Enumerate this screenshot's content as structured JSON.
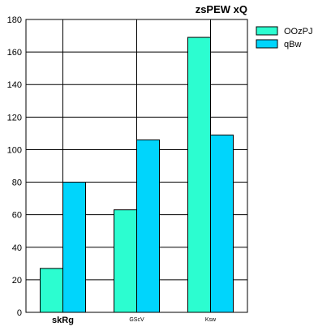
{
  "chart_data": {
    "type": "bar",
    "title": "zsPEW xQ",
    "categories": [
      "skRg",
      "GScV",
      "Ksw"
    ],
    "series": [
      {
        "name": "OOzPJ",
        "color": "#2cfdd0",
        "values": [
          27,
          63,
          169
        ]
      },
      {
        "name": "qBw",
        "color": "#00d5fc",
        "values": [
          80,
          106,
          109
        ]
      }
    ],
    "yticks": [
      0,
      20,
      40,
      60,
      80,
      100,
      120,
      140,
      160,
      180
    ],
    "ylim": [
      0,
      180
    ],
    "xlabel": "",
    "ylabel": "",
    "grid": true,
    "legend": "top-right"
  }
}
